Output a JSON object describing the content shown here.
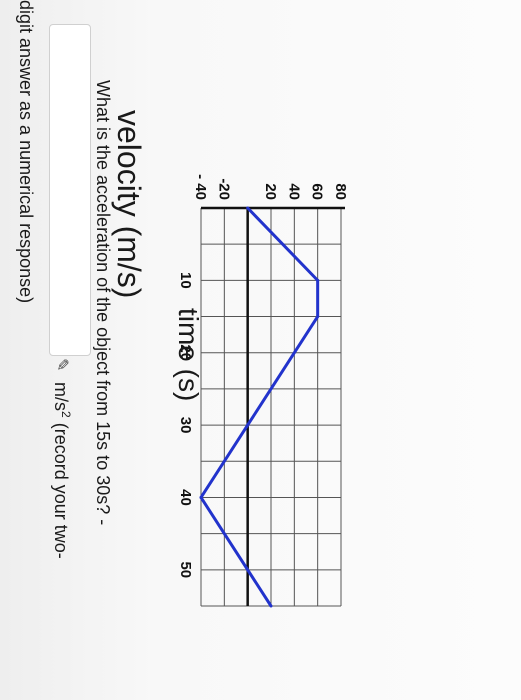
{
  "chart_data": {
    "type": "line",
    "title": "velocity (m/s)",
    "xlabel": "time (s)",
    "ylabel": "velocity (m/s)",
    "xlim": [
      0,
      55
    ],
    "ylim": [
      -40,
      80
    ],
    "x_ticks": [
      "10",
      "20",
      "30",
      "40",
      "50"
    ],
    "y_ticks": [
      "80",
      "60",
      "40",
      "20",
      "-20",
      "- 40"
    ],
    "grid": true,
    "series_color": "#2233cc",
    "series": [
      {
        "x": [
          0,
          10,
          15,
          30,
          40,
          55
        ],
        "y": [
          0,
          60,
          60,
          0,
          -40,
          20
        ]
      }
    ]
  },
  "question": {
    "line1": "What is the acceleration of the object from 15s to 30s? -",
    "unit_prefix": "m/s",
    "unit_power": "2",
    "unit_suffix": "(record your two-",
    "line2": "digit answer as a numerical response)",
    "answer_value": ""
  },
  "icons": {
    "edit": "pen-icon"
  }
}
